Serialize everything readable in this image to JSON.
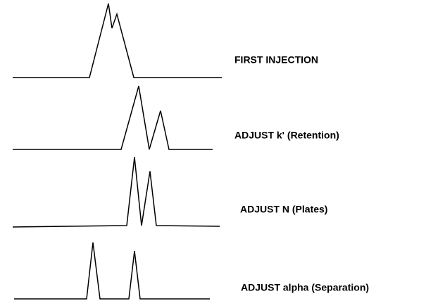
{
  "steps": [
    {
      "label": "FIRST INJECTION"
    },
    {
      "label": "ADJUST k' (Retention)"
    },
    {
      "label": "ADJUST N (Plates)"
    },
    {
      "label": "ADJUST alpha (Separation)"
    }
  ]
}
